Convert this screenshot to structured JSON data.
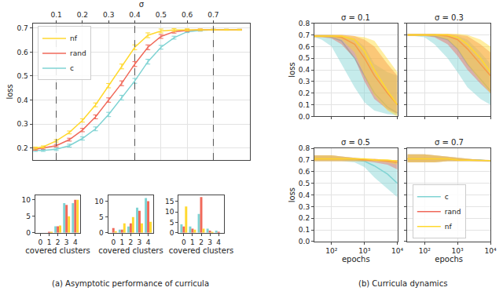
{
  "chart_data": [
    {
      "type": "line",
      "xlabel": "σ",
      "ylabel": "loss",
      "legend": "upper left",
      "grid": true,
      "xlim": [
        0.01,
        0.84
      ],
      "xticks": [
        0.1,
        0.2,
        0.3,
        0.4,
        0.5,
        0.6,
        0.7
      ],
      "ylim": [
        0.15,
        0.72
      ],
      "yticks": [
        0.2,
        0.3,
        0.4,
        0.5,
        0.6,
        0.7
      ],
      "vlines": [
        0.1,
        0.4,
        0.7
      ],
      "x": [
        0.02,
        0.05,
        0.1,
        0.15,
        0.2,
        0.25,
        0.3,
        0.35,
        0.4,
        0.45,
        0.5,
        0.55,
        0.6,
        0.65,
        0.7,
        0.75,
        0.8
      ],
      "series": [
        {
          "name": "c",
          "color": "#7fd3d3",
          "values": [
            0.19,
            0.19,
            0.195,
            0.21,
            0.24,
            0.28,
            0.34,
            0.41,
            0.48,
            0.56,
            0.62,
            0.66,
            0.685,
            0.69,
            0.693,
            0.693,
            0.693
          ],
          "errors": [
            0.004,
            0.004,
            0.005,
            0.006,
            0.007,
            0.008,
            0.009,
            0.01,
            0.01,
            0.01,
            0.008,
            0.006,
            0.004,
            0.003,
            0.002,
            0.002,
            0.002
          ]
        },
        {
          "name": "rand",
          "color": "#f0695a",
          "values": [
            0.195,
            0.2,
            0.21,
            0.235,
            0.275,
            0.33,
            0.4,
            0.47,
            0.55,
            0.62,
            0.665,
            0.685,
            0.69,
            0.693,
            0.693,
            0.693,
            0.693
          ],
          "errors": [
            0.004,
            0.004,
            0.005,
            0.006,
            0.007,
            0.008,
            0.009,
            0.01,
            0.01,
            0.01,
            0.008,
            0.006,
            0.004,
            0.003,
            0.002,
            0.002,
            0.002
          ]
        },
        {
          "name": "nf",
          "color": "#ffd92f",
          "values": [
            0.2,
            0.205,
            0.23,
            0.265,
            0.315,
            0.38,
            0.46,
            0.54,
            0.62,
            0.67,
            0.688,
            0.692,
            0.693,
            0.693,
            0.693,
            0.693,
            0.693
          ],
          "errors": [
            0.004,
            0.004,
            0.005,
            0.006,
            0.007,
            0.008,
            0.009,
            0.01,
            0.01,
            0.01,
            0.008,
            0.006,
            0.004,
            0.003,
            0.002,
            0.002,
            0.002
          ]
        }
      ]
    },
    {
      "type": "bar",
      "xlabel": "covered clusters",
      "xlim": [
        -0.6,
        4.6
      ],
      "xticks": [
        0,
        1,
        2,
        3,
        4
      ],
      "ylim": [
        0,
        11.5
      ],
      "yticks": [
        0,
        5,
        10
      ],
      "x": [
        0,
        1,
        2,
        3,
        4
      ],
      "series": [
        {
          "name": "c",
          "color": "#7fd3d3",
          "values": [
            0,
            0,
            2,
            9,
            9
          ]
        },
        {
          "name": "rand",
          "color": "#f0695a",
          "values": [
            0,
            0.2,
            2,
            8.5,
            10
          ]
        },
        {
          "name": "nf",
          "color": "#ffd92f",
          "values": [
            0,
            0.3,
            2.2,
            5,
            10
          ]
        }
      ]
    },
    {
      "type": "bar",
      "xlabel": "covered clusters",
      "xlim": [
        -0.6,
        4.6
      ],
      "xticks": [
        0,
        1,
        2,
        3,
        4
      ],
      "ylim": [
        0,
        12
      ],
      "yticks": [
        0,
        5,
        10
      ],
      "x": [
        0,
        1,
        2,
        3,
        4
      ],
      "series": [
        {
          "name": "c",
          "color": "#7fd3d3",
          "values": [
            0,
            1,
            2,
            8,
            11
          ]
        },
        {
          "name": "rand",
          "color": "#f0695a",
          "values": [
            1.5,
            1,
            3,
            7,
            10
          ]
        },
        {
          "name": "nf",
          "color": "#ffd92f",
          "values": [
            0.5,
            3,
            5,
            3,
            3.5
          ]
        }
      ]
    },
    {
      "type": "bar",
      "xlabel": "covered clusters",
      "xlim": [
        -0.6,
        4.6
      ],
      "xticks": [
        0,
        1,
        2,
        3,
        4
      ],
      "ylim": [
        0,
        18
      ],
      "yticks": [
        0,
        5,
        10,
        15
      ],
      "x": [
        0,
        1,
        2,
        3,
        4
      ],
      "series": [
        {
          "name": "c",
          "color": "#7fd3d3",
          "values": [
            4,
            3,
            9,
            2,
            1
          ]
        },
        {
          "name": "rand",
          "color": "#f0695a",
          "values": [
            3,
            2,
            17,
            1,
            0.5
          ]
        },
        {
          "name": "nf",
          "color": "#ffd92f",
          "values": [
            12.5,
            1.5,
            2,
            0.5,
            0
          ]
        }
      ]
    },
    {
      "type": "line",
      "title": "σ = 0.1",
      "ylabel": "loss",
      "tick_labels": "y",
      "log": "x",
      "grid": true,
      "xlim": [
        30,
        10000
      ],
      "xticks": [
        {
          "value": 100,
          "label": "10²"
        },
        {
          "value": 1000,
          "label": "10³"
        },
        {
          "value": 10000,
          "label": "10⁴"
        }
      ],
      "ylim": [
        0,
        0.8
      ],
      "yticks": [
        {
          "value": 0,
          "label": "0.0"
        },
        0.1,
        0.2,
        0.3,
        0.4,
        0.5,
        0.6,
        0.7,
        0.8
      ],
      "x": [
        30,
        50,
        100,
        200,
        500,
        1000,
        2000,
        5000,
        10000
      ],
      "series": [
        {
          "name": "c",
          "color": "#7fd3d3",
          "values": [
            0.69,
            0.69,
            0.68,
            0.65,
            0.5,
            0.35,
            0.2,
            0.08,
            0.03
          ],
          "low": [
            0.68,
            0.66,
            0.6,
            0.45,
            0.25,
            0.12,
            0.05,
            0.02,
            0.01
          ],
          "high": [
            0.7,
            0.7,
            0.7,
            0.69,
            0.67,
            0.6,
            0.45,
            0.38,
            0.35
          ]
        },
        {
          "name": "rand",
          "color": "#f0695a",
          "values": [
            0.69,
            0.69,
            0.69,
            0.68,
            0.62,
            0.5,
            0.35,
            0.2,
            0.1
          ],
          "low": [
            0.68,
            0.68,
            0.67,
            0.62,
            0.5,
            0.3,
            0.15,
            0.06,
            0.02
          ],
          "high": [
            0.7,
            0.7,
            0.7,
            0.7,
            0.69,
            0.66,
            0.6,
            0.45,
            0.35
          ]
        },
        {
          "name": "nf",
          "color": "#ffd92f",
          "values": [
            0.69,
            0.69,
            0.69,
            0.69,
            0.66,
            0.56,
            0.4,
            0.22,
            0.1
          ],
          "low": [
            0.68,
            0.68,
            0.68,
            0.66,
            0.55,
            0.35,
            0.18,
            0.05,
            0
          ],
          "high": [
            0.7,
            0.7,
            0.7,
            0.7,
            0.69,
            0.68,
            0.65,
            0.5,
            0.38
          ]
        }
      ]
    },
    {
      "type": "line",
      "title": "σ = 0.3",
      "tick_labels": false,
      "log": "x",
      "grid": true,
      "xlim": [
        30,
        10000
      ],
      "xticks": [
        {
          "value": 100,
          "label": "10²"
        },
        {
          "value": 1000,
          "label": "10³"
        },
        {
          "value": 10000,
          "label": "10⁴"
        }
      ],
      "ylim": [
        0,
        0.8
      ],
      "yticks": [
        {
          "value": 0,
          "label": "0.0"
        },
        0.1,
        0.2,
        0.3,
        0.4,
        0.5,
        0.6,
        0.7,
        0.8
      ],
      "x": [
        30,
        50,
        100,
        200,
        500,
        1000,
        2000,
        5000,
        10000
      ],
      "series": [
        {
          "name": "c",
          "color": "#7fd3d3",
          "values": [
            0.7,
            0.7,
            0.7,
            0.69,
            0.66,
            0.58,
            0.45,
            0.32,
            0.22
          ],
          "low": [
            0.69,
            0.69,
            0.68,
            0.62,
            0.5,
            0.38,
            0.25,
            0.15,
            0.1
          ],
          "high": [
            0.71,
            0.71,
            0.71,
            0.71,
            0.7,
            0.69,
            0.66,
            0.55,
            0.45
          ]
        },
        {
          "name": "rand",
          "color": "#f0695a",
          "values": [
            0.7,
            0.7,
            0.7,
            0.7,
            0.69,
            0.66,
            0.58,
            0.45,
            0.35
          ],
          "low": [
            0.69,
            0.69,
            0.69,
            0.68,
            0.62,
            0.52,
            0.4,
            0.28,
            0.2
          ],
          "high": [
            0.71,
            0.71,
            0.71,
            0.71,
            0.71,
            0.7,
            0.69,
            0.62,
            0.55
          ]
        },
        {
          "name": "nf",
          "color": "#ffd92f",
          "values": [
            0.7,
            0.7,
            0.7,
            0.7,
            0.7,
            0.68,
            0.62,
            0.5,
            0.38
          ],
          "low": [
            0.69,
            0.69,
            0.69,
            0.69,
            0.66,
            0.58,
            0.45,
            0.3,
            0.2
          ],
          "high": [
            0.71,
            0.71,
            0.71,
            0.71,
            0.71,
            0.71,
            0.7,
            0.66,
            0.6
          ]
        }
      ]
    },
    {
      "type": "line",
      "title": "σ = 0.5",
      "xlabel": "epochs",
      "ylabel": "loss",
      "log": "x",
      "grid": true,
      "xlim": [
        30,
        10000
      ],
      "xticks": [
        {
          "value": 100,
          "label": "10²"
        },
        {
          "value": 1000,
          "label": "10³"
        },
        {
          "value": 10000,
          "label": "10⁴"
        }
      ],
      "ylim": [
        0,
        0.8
      ],
      "yticks": [
        {
          "value": 0,
          "label": "0.0"
        },
        0.1,
        0.2,
        0.3,
        0.4,
        0.5,
        0.6,
        0.7,
        0.8
      ],
      "x": [
        30,
        50,
        100,
        200,
        500,
        1000,
        2000,
        5000,
        10000
      ],
      "series": [
        {
          "name": "c",
          "color": "#7fd3d3",
          "values": [
            0.71,
            0.71,
            0.71,
            0.71,
            0.7,
            0.69,
            0.65,
            0.58,
            0.5
          ],
          "low": [
            0.69,
            0.69,
            0.69,
            0.69,
            0.68,
            0.64,
            0.55,
            0.45,
            0.38
          ],
          "high": [
            0.74,
            0.74,
            0.74,
            0.73,
            0.72,
            0.71,
            0.7,
            0.69,
            0.68
          ]
        },
        {
          "name": "rand",
          "color": "#f0695a",
          "values": [
            0.71,
            0.71,
            0.71,
            0.71,
            0.71,
            0.7,
            0.7,
            0.69,
            0.68
          ],
          "low": [
            0.69,
            0.69,
            0.69,
            0.69,
            0.69,
            0.69,
            0.68,
            0.66,
            0.62
          ],
          "high": [
            0.74,
            0.74,
            0.74,
            0.73,
            0.72,
            0.71,
            0.71,
            0.7,
            0.7
          ]
        },
        {
          "name": "nf",
          "color": "#ffd92f",
          "values": [
            0.71,
            0.71,
            0.71,
            0.71,
            0.71,
            0.71,
            0.7,
            0.7,
            0.69
          ],
          "low": [
            0.69,
            0.69,
            0.69,
            0.69,
            0.69,
            0.69,
            0.69,
            0.68,
            0.66
          ],
          "high": [
            0.74,
            0.74,
            0.74,
            0.73,
            0.72,
            0.71,
            0.71,
            0.7,
            0.7
          ]
        }
      ]
    },
    {
      "type": "line",
      "title": "σ = 0.7",
      "xlabel": "epochs",
      "tick_labels": "x",
      "log": "x",
      "grid": true,
      "legend": "lower left",
      "xlim": [
        30,
        10000
      ],
      "xticks": [
        {
          "value": 100,
          "label": "10²"
        },
        {
          "value": 1000,
          "label": "10³"
        },
        {
          "value": 10000,
          "label": "10⁴"
        }
      ],
      "ylim": [
        0,
        0.8
      ],
      "yticks": [
        {
          "value": 0,
          "label": "0.0"
        },
        0.1,
        0.2,
        0.3,
        0.4,
        0.5,
        0.6,
        0.7,
        0.8
      ],
      "x": [
        30,
        50,
        100,
        200,
        500,
        1000,
        2000,
        5000,
        10000
      ],
      "series": [
        {
          "name": "c",
          "color": "#7fd3d3",
          "values": [
            0.71,
            0.71,
            0.71,
            0.71,
            0.71,
            0.7,
            0.7,
            0.7,
            0.69
          ],
          "low": [
            0.68,
            0.68,
            0.68,
            0.68,
            0.69,
            0.69,
            0.69,
            0.69,
            0.69
          ],
          "high": [
            0.75,
            0.75,
            0.75,
            0.74,
            0.73,
            0.72,
            0.71,
            0.7,
            0.7
          ]
        },
        {
          "name": "rand",
          "color": "#f0695a",
          "values": [
            0.71,
            0.71,
            0.71,
            0.71,
            0.71,
            0.7,
            0.7,
            0.7,
            0.695
          ],
          "low": [
            0.68,
            0.68,
            0.68,
            0.68,
            0.69,
            0.69,
            0.69,
            0.69,
            0.69
          ],
          "high": [
            0.75,
            0.75,
            0.75,
            0.74,
            0.73,
            0.72,
            0.71,
            0.7,
            0.7
          ]
        },
        {
          "name": "nf",
          "color": "#ffd92f",
          "values": [
            0.71,
            0.71,
            0.71,
            0.71,
            0.71,
            0.7,
            0.7,
            0.7,
            0.695
          ],
          "low": [
            0.68,
            0.68,
            0.68,
            0.68,
            0.69,
            0.69,
            0.69,
            0.69,
            0.69
          ],
          "high": [
            0.75,
            0.75,
            0.75,
            0.74,
            0.73,
            0.72,
            0.71,
            0.7,
            0.7
          ]
        }
      ]
    }
  ],
  "captions": [
    "(a) Asymptotic performance of curricula",
    "(b) Curricula dynamics"
  ]
}
